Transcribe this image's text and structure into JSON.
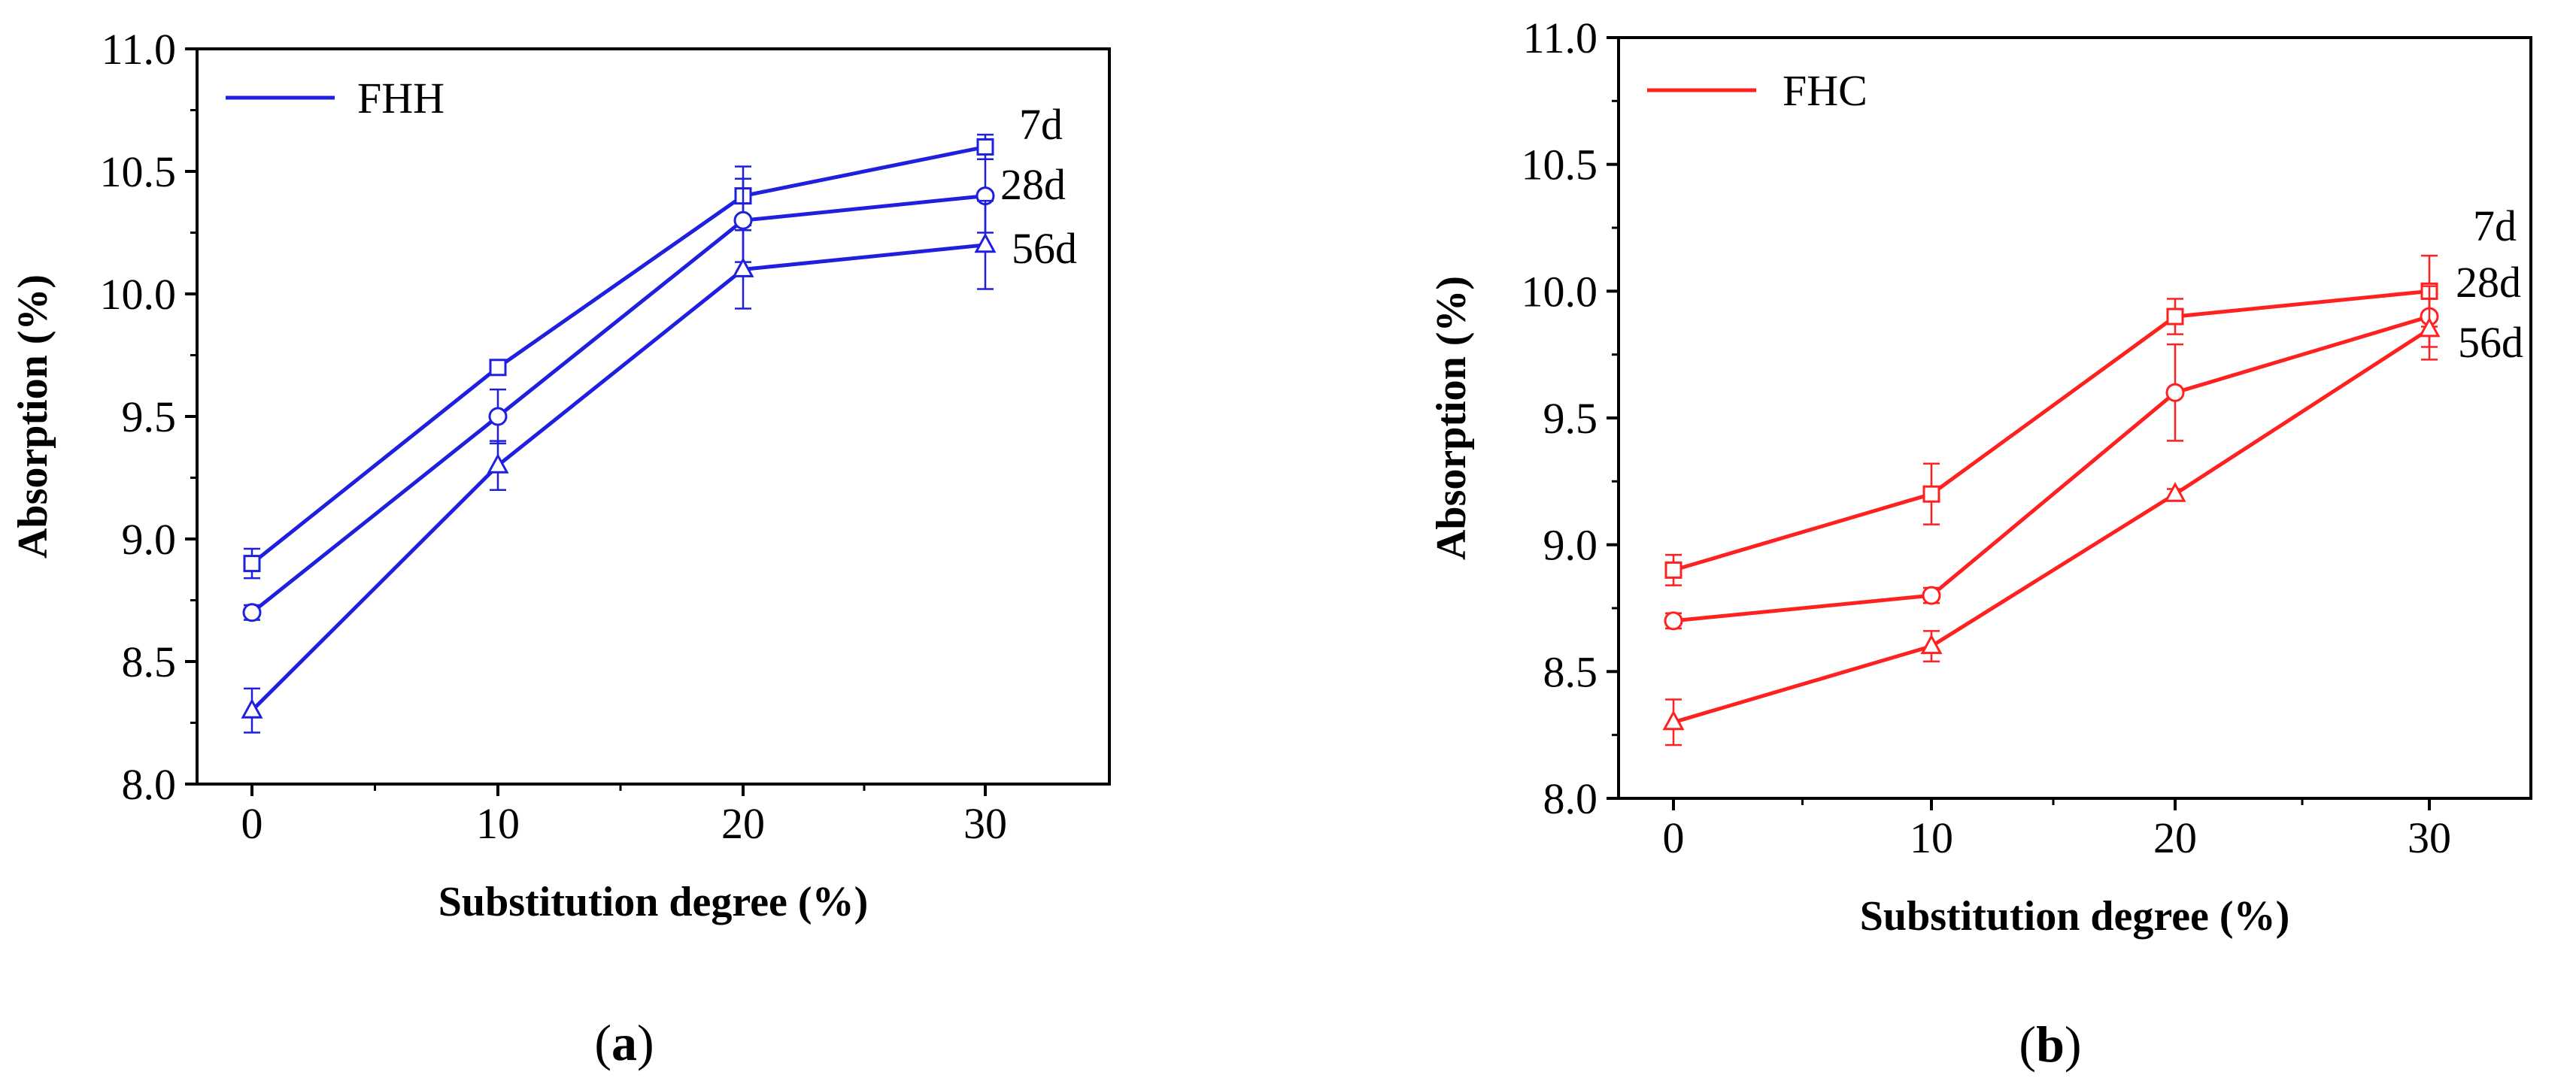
{
  "chart_data": [
    {
      "type": "line",
      "panel_label": "a",
      "color": "#1f1fe0",
      "legend": "FHH",
      "xlabel": "Substitution degree (%)",
      "ylabel": "Absorption (%)",
      "x": [
        0,
        10,
        20,
        30
      ],
      "xticks": [
        "0",
        "10",
        "20",
        "30"
      ],
      "ylim": [
        8.0,
        11.0
      ],
      "yticks": [
        "8.0",
        "8.5",
        "9.0",
        "9.5",
        "10.0",
        "10.5",
        "11.0"
      ],
      "series": [
        {
          "name": "7d",
          "marker": "square",
          "values": [
            8.9,
            9.7,
            10.4,
            10.6
          ],
          "errors": [
            0.06,
            0.02,
            0.12,
            0.05
          ]
        },
        {
          "name": "28d",
          "marker": "circle",
          "values": [
            8.7,
            9.5,
            10.3,
            10.4
          ],
          "errors": [
            0.03,
            0.11,
            0.17,
            0.15
          ]
        },
        {
          "name": "56d",
          "marker": "triangle",
          "values": [
            8.3,
            9.3,
            10.1,
            10.2
          ],
          "errors": [
            0.09,
            0.1,
            0.16,
            0.18
          ]
        }
      ]
    },
    {
      "type": "line",
      "panel_label": "b",
      "color": "#ff2020",
      "legend": "FHC",
      "xlabel": "Substitution degree (%)",
      "ylabel": "Absorption (%)",
      "x": [
        0,
        10,
        20,
        30
      ],
      "xticks": [
        "0",
        "10",
        "20",
        "30"
      ],
      "ylim": [
        8.0,
        11.0
      ],
      "yticks": [
        "8.0",
        "8.5",
        "9.0",
        "9.5",
        "10.0",
        "10.5",
        "11.0"
      ],
      "series": [
        {
          "name": "7d",
          "marker": "square",
          "values": [
            8.9,
            9.2,
            9.9,
            10.0
          ],
          "errors": [
            0.06,
            0.12,
            0.07,
            0.14
          ]
        },
        {
          "name": "28d",
          "marker": "circle",
          "values": [
            8.7,
            8.8,
            9.6,
            9.9
          ],
          "errors": [
            0.03,
            0.03,
            0.19,
            0.12
          ]
        },
        {
          "name": "56d",
          "marker": "triangle",
          "values": [
            8.3,
            8.6,
            9.2,
            9.85
          ],
          "errors": [
            0.09,
            0.06,
            0.02,
            0.12
          ]
        }
      ]
    }
  ]
}
